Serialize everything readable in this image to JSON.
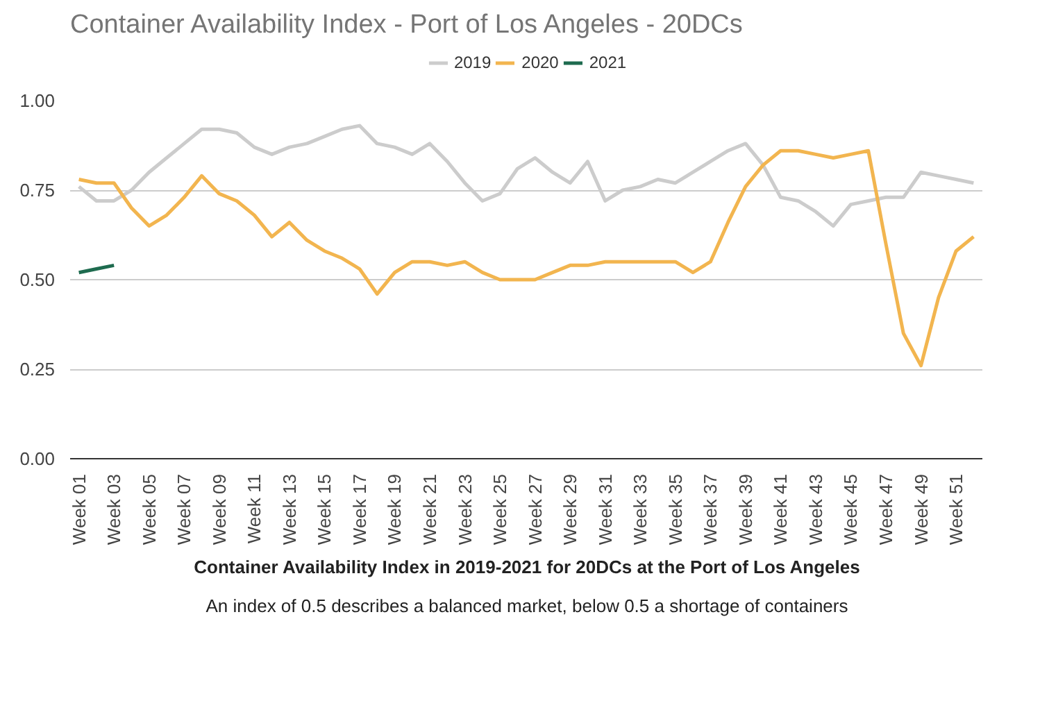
{
  "chart_data": {
    "type": "line",
    "title": "Container Availability Index - Port of Los Angeles - 20DCs",
    "categories": [
      "Week 01",
      null,
      "Week 03",
      null,
      "Week 05",
      null,
      "Week 07",
      null,
      "Week 09",
      null,
      "Week 11",
      null,
      "Week 13",
      null,
      "Week 15",
      null,
      "Week 17",
      null,
      "Week 19",
      null,
      "Week 21",
      null,
      "Week 23",
      null,
      "Week 25",
      null,
      "Week 27",
      null,
      "Week 29",
      null,
      "Week 31",
      null,
      "Week 33",
      null,
      "Week 35",
      null,
      "Week 37",
      null,
      "Week 39",
      null,
      "Week 41",
      null,
      "Week 43",
      null,
      "Week 45",
      null,
      "Week 47",
      null,
      "Week 49",
      null,
      "Week 51",
      null
    ],
    "series": [
      {
        "name": "2019",
        "color": "#cccccc",
        "values": [
          0.76,
          0.72,
          0.72,
          0.75,
          0.8,
          0.84,
          0.88,
          0.92,
          0.92,
          0.91,
          0.87,
          0.85,
          0.87,
          0.88,
          0.9,
          0.92,
          0.93,
          0.88,
          0.87,
          0.85,
          0.88,
          0.83,
          0.77,
          0.72,
          0.74,
          0.81,
          0.84,
          0.8,
          0.77,
          0.83,
          0.72,
          0.75,
          0.76,
          0.78,
          0.77,
          0.8,
          0.83,
          0.86,
          0.88,
          0.82,
          0.73,
          0.72,
          0.69,
          0.65,
          0.71,
          0.72,
          0.73,
          0.73,
          0.8,
          0.79,
          0.78,
          0.77
        ]
      },
      {
        "name": "2020",
        "color": "#f2b54f",
        "values": [
          0.78,
          0.77,
          0.77,
          0.7,
          0.65,
          0.68,
          0.73,
          0.79,
          0.74,
          0.72,
          0.68,
          0.62,
          0.66,
          0.61,
          0.58,
          0.56,
          0.53,
          0.46,
          0.52,
          0.55,
          0.55,
          0.54,
          0.55,
          0.52,
          0.5,
          0.5,
          0.5,
          0.52,
          0.54,
          0.54,
          0.55,
          0.55,
          0.55,
          0.55,
          0.55,
          0.52,
          0.55,
          0.66,
          0.76,
          0.82,
          0.86,
          0.86,
          0.85,
          0.84,
          0.85,
          0.86,
          0.6,
          0.35,
          0.26,
          0.45,
          0.58,
          0.62
        ]
      },
      {
        "name": "2021",
        "color": "#1e6b4f",
        "values": [
          0.52,
          0.53,
          0.54,
          null,
          null,
          null,
          null,
          null,
          null,
          null,
          null,
          null,
          null,
          null,
          null,
          null,
          null,
          null,
          null,
          null,
          null,
          null,
          null,
          null,
          null,
          null,
          null,
          null,
          null,
          null,
          null,
          null,
          null,
          null,
          null,
          null,
          null,
          null,
          null,
          null,
          null,
          null,
          null,
          null,
          null,
          null,
          null,
          null,
          null,
          null,
          null,
          null
        ]
      }
    ],
    "ylim": [
      0,
      1.0
    ],
    "yticks": [
      {
        "value": 0,
        "label": "0.00"
      },
      {
        "value": 0.25,
        "label": "0.25"
      },
      {
        "value": 0.5,
        "label": "0.50"
      },
      {
        "value": 0.75,
        "label": "0.75"
      },
      {
        "value": 1.0,
        "label": "1.00"
      }
    ],
    "grid": "y",
    "legend": "top",
    "annotations": [
      "Container Availability Index in 2019-2021 for 20DCs at the Port of Los Angeles",
      "An index of 0.5 describes a balanced market, below 0.5 a shortage of containers"
    ]
  }
}
